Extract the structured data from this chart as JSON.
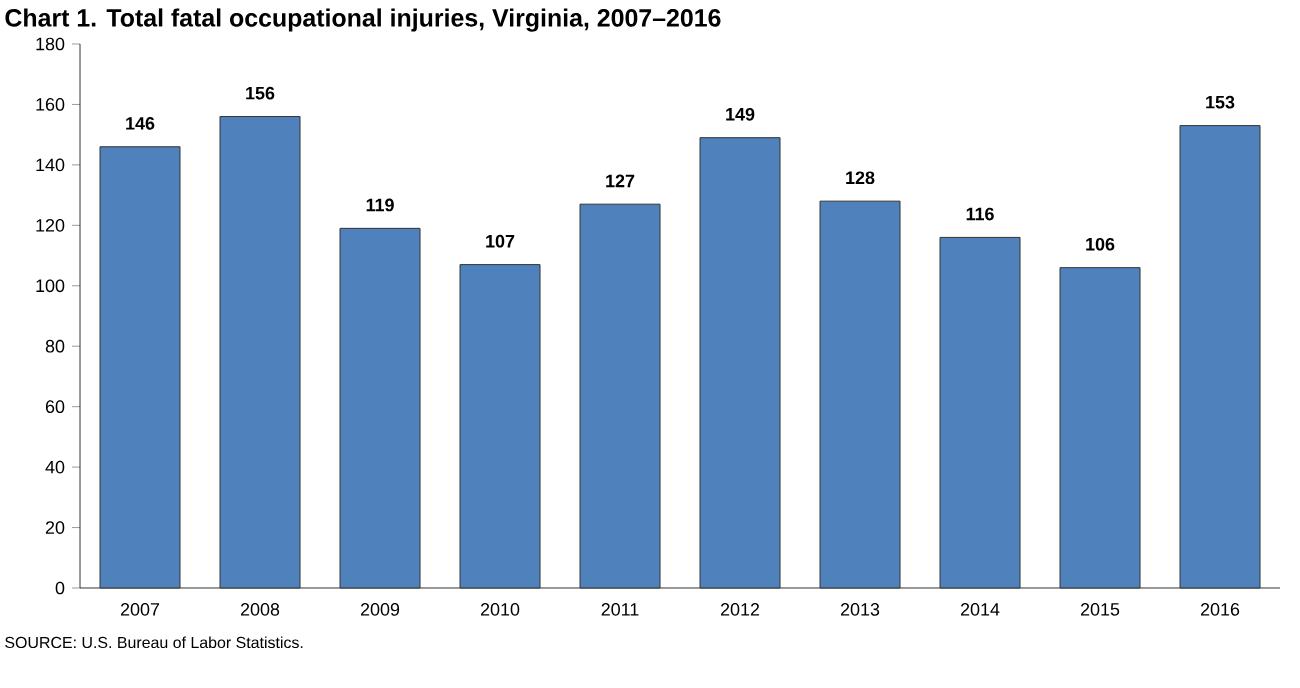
{
  "chart_data": {
    "type": "bar",
    "title": "Chart 1. Total fatal occupational injuries, Virginia, 2007–2016",
    "categories": [
      "2007",
      "2008",
      "2009",
      "2010",
      "2011",
      "2012",
      "2013",
      "2014",
      "2015",
      "2016"
    ],
    "values": [
      146,
      156,
      119,
      107,
      127,
      149,
      128,
      116,
      106,
      153
    ],
    "color": "#4f81bd",
    "ylim": [
      0,
      180
    ],
    "yticks": [
      0,
      20,
      40,
      60,
      80,
      100,
      120,
      140,
      160,
      180
    ],
    "grid": false,
    "data_labels": true,
    "annotations": [
      "SOURCE: U.S. Bureau of Labor Statistics."
    ]
  }
}
